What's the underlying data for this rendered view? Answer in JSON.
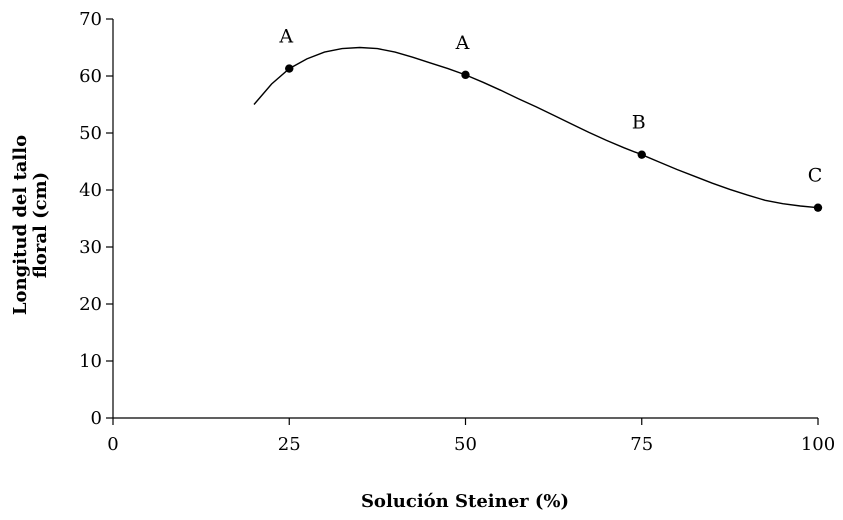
{
  "chart_data": {
    "type": "scatter",
    "xlabel": "Solución Steiner (%)",
    "ylabel_lines": [
      "Longitud del tallo",
      "floral (cm)"
    ],
    "xlim": [
      0,
      100
    ],
    "ylim": [
      0,
      70
    ],
    "xticks": [
      0,
      25,
      50,
      75,
      100
    ],
    "yticks": [
      0,
      10,
      20,
      30,
      40,
      50,
      60,
      70
    ],
    "grid": false,
    "series": [
      {
        "x": [
          25,
          50,
          75,
          100
        ],
        "y": [
          61.3,
          60.2,
          46.2,
          36.9
        ],
        "letters": [
          "A",
          "A",
          "B",
          "C"
        ]
      }
    ],
    "fit_curve": {
      "x": [
        20,
        22.5,
        25,
        27.5,
        30,
        32.5,
        35,
        37.5,
        40,
        42.5,
        45,
        47.5,
        50,
        52.5,
        55,
        57.5,
        60,
        62.5,
        65,
        67.5,
        70,
        72.5,
        75,
        77.5,
        80,
        82.5,
        85,
        87.5,
        90,
        92.5,
        95,
        97.5,
        100
      ],
      "y": [
        55.0,
        58.6,
        61.3,
        63.0,
        64.2,
        64.8,
        65.0,
        64.8,
        64.2,
        63.3,
        62.3,
        61.3,
        60.2,
        58.9,
        57.5,
        56.0,
        54.6,
        53.1,
        51.6,
        50.1,
        48.7,
        47.4,
        46.2,
        44.9,
        43.6,
        42.4,
        41.2,
        40.1,
        39.1,
        38.2,
        37.6,
        37.2,
        36.9
      ]
    }
  }
}
